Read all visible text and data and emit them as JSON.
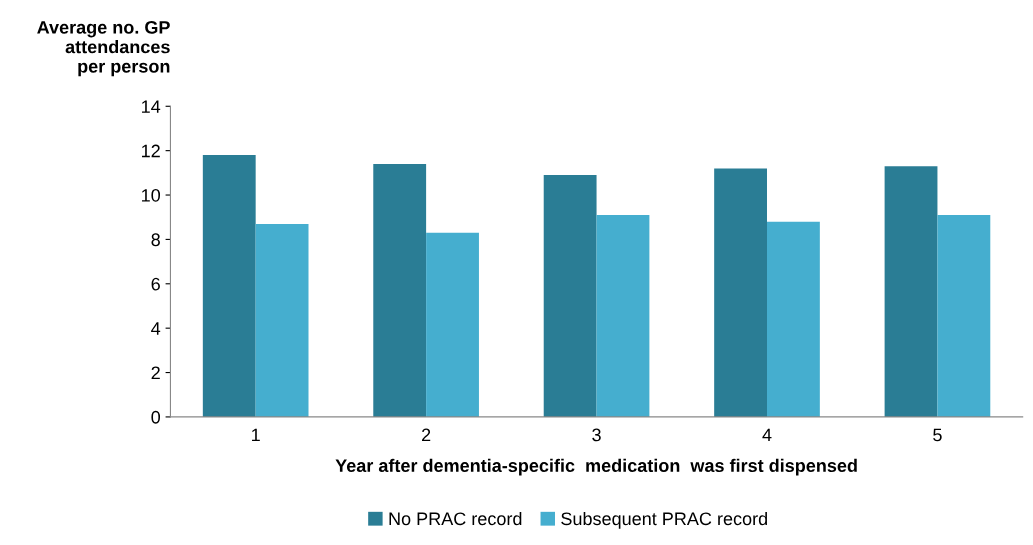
{
  "chart_data": {
    "type": "bar",
    "ylabel": "Average no. GP\nattendances\nper person",
    "xlabel": "Year after dementia-specific  medication  was first dispensed",
    "categories": [
      "1",
      "2",
      "3",
      "4",
      "5"
    ],
    "series": [
      {
        "name": "No PRAC record",
        "color": "#2a7d95",
        "values": [
          11.8,
          11.4,
          10.9,
          11.2,
          11.3
        ]
      },
      {
        "name": "Subsequent PRAC record",
        "color": "#45aecf",
        "values": [
          8.7,
          8.3,
          9.1,
          8.8,
          9.1
        ]
      }
    ],
    "ylim": [
      0,
      14
    ],
    "yticks": [
      0,
      2,
      4,
      6,
      8,
      10,
      12,
      14
    ],
    "grid": false,
    "legend": "bottom"
  }
}
